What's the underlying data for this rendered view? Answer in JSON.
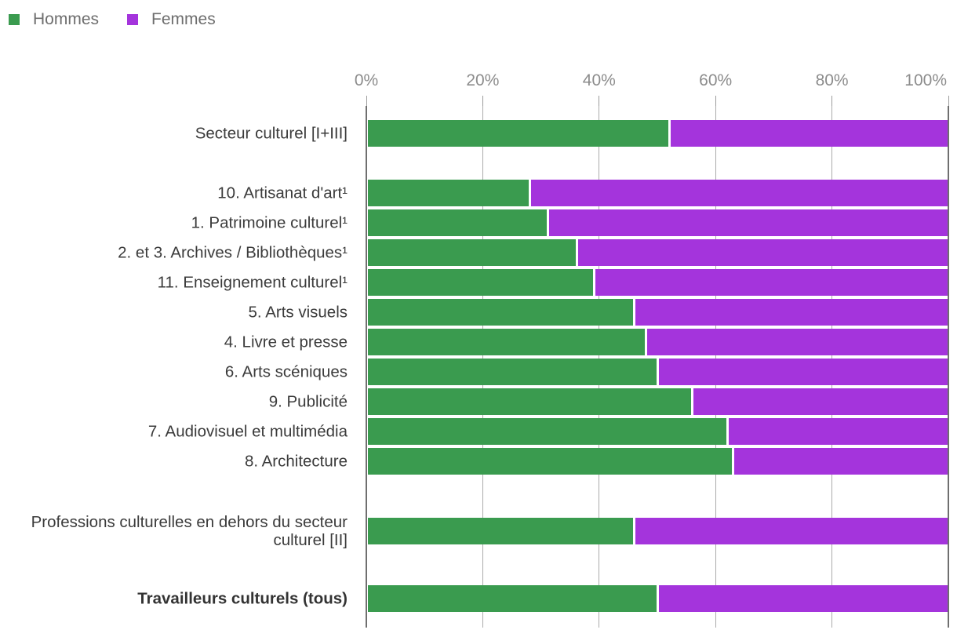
{
  "legend": {
    "items": [
      {
        "label": "Hommes",
        "color": "#3a9b4f"
      },
      {
        "label": "Femmes",
        "color": "#a434dc"
      }
    ]
  },
  "axis": {
    "tick_labels": [
      "0%",
      "20%",
      "40%",
      "60%",
      "80%",
      "100%"
    ]
  },
  "chart_data": {
    "type": "bar",
    "orientation": "horizontal",
    "stacked": true,
    "unit": "percent",
    "xlim": [
      0,
      100
    ],
    "x_ticks": [
      0,
      20,
      40,
      60,
      80,
      100
    ],
    "grid": "vertical",
    "legend_position": "top-left",
    "categories": [
      "Secteur culturel [I+III]",
      "10. Artisanat d'art¹",
      "1. Patrimoine culturel¹",
      "2. et 3. Archives / Bibliothèques¹",
      "11. Enseignement culturel¹",
      "5. Arts visuels",
      "4. Livre et presse",
      "6. Arts scéniques",
      "9. Publicité",
      "7. Audiovisuel et multimédia",
      "8. Architecture",
      "Professions culturelles en dehors du secteur culturel [II]",
      "Travailleurs culturels (tous)"
    ],
    "series": [
      {
        "name": "Hommes",
        "color": "#3a9b4f",
        "values": [
          52,
          28,
          31,
          36,
          39,
          46,
          48,
          50,
          56,
          62,
          63,
          46,
          50
        ]
      },
      {
        "name": "Femmes",
        "color": "#a434dc",
        "values": [
          48,
          72,
          69,
          64,
          61,
          54,
          52,
          50,
          44,
          38,
          37,
          54,
          50
        ]
      }
    ],
    "group_breaks_after_index": [
      0,
      10,
      11
    ],
    "bold_category_index": 12
  }
}
